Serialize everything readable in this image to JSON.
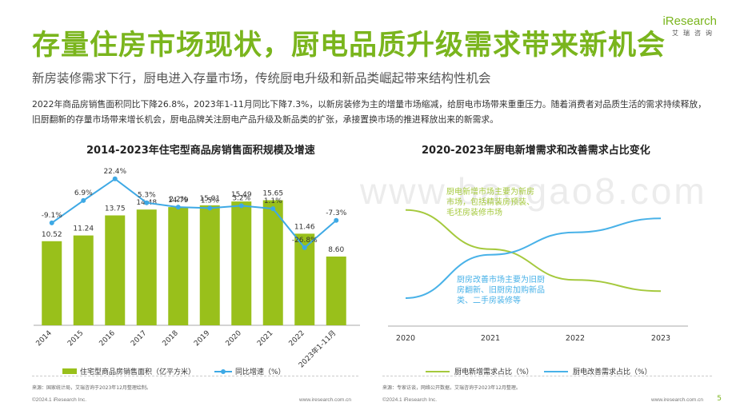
{
  "header": {
    "title": "存量住房市场现状，厨电品质升级需求带来新机会",
    "subtitle": "新房装修需求下行，厨电进入存量市场，传统厨电升级和新品类崛起带来结构性机会",
    "logo_main": "iResearch",
    "logo_sub": "艾瑞咨询"
  },
  "body": {
    "paragraph": "2022年商品房销售面积同比下降26.8%，2023年1-11月同比下降7.3%，以新房装修为主的增量市场缩减，给厨电市场带来重重压力。随着消费者对品质生活的需求持续释放，旧厨翻新的存量市场带来增长机会，厨电品牌关注厨电产品升级及新品类的扩张，承接置换市场的推进释放出来的新需求。"
  },
  "watermark": "www.baogao8.com",
  "chart_data": [
    {
      "type": "bar",
      "title": "2014-2023年住宅型商品房销售面积规模及增速",
      "categories": [
        "2014",
        "2015",
        "2016",
        "2017",
        "2018",
        "2019",
        "2020",
        "2021",
        "2022",
        "2023年1-11月"
      ],
      "series": [
        {
          "name": "住宅型商品房销售面积（亿平方米）",
          "values": [
            10.52,
            11.24,
            13.75,
            14.48,
            14.79,
            15.01,
            15.49,
            15.65,
            11.46,
            8.6
          ],
          "labels": [
            "10.52",
            "11.24",
            "13.75",
            "14.48",
            "14.79",
            "15.01",
            "15.49",
            "15.65",
            "11.46",
            "8.60"
          ],
          "color": "#99c01b"
        },
        {
          "name": "同比增速（%）",
          "type": "line",
          "values": [
            -9.1,
            6.9,
            22.4,
            5.3,
            2.2,
            1.5,
            3.2,
            1.1,
            -26.8,
            -7.3
          ],
          "labels": [
            "-9.1%",
            "6.9%",
            "22.4%",
            "5.3%",
            "2.2%",
            "1.5%",
            "3.2%",
            "1.1%",
            "-26.8%",
            "-7.3%"
          ],
          "color": "#3ea9e5"
        }
      ]
    },
    {
      "type": "line",
      "title": "2020-2023年厨电新增需求和改善需求占比变化",
      "x": [
        "2020",
        "2021",
        "2022",
        "2023"
      ],
      "series": [
        {
          "name": "厨电新增需求占比（%）",
          "color": "#a5c93d",
          "values": [
            0.83,
            0.55,
            0.33,
            0.25
          ]
        },
        {
          "name": "厨电改善需求占比（%）",
          "color": "#49b2e8",
          "values": [
            0.2,
            0.51,
            0.67,
            0.77
          ]
        }
      ],
      "annotations": [
        "厨电新增市场主要为新房市场，包括精装房预装、毛坯房装修市场",
        "厨房改善市场主要为旧厨房翻新、旧厨房加购新品类、二手房装修等"
      ]
    }
  ],
  "footer": {
    "source_left": "来源：国家统计局，艾瑞咨询于2023年12月整理绘制。",
    "source_right": "来源：专家访谈，网络公开数据，艾瑞咨询于2023年12月整理。",
    "copyright_left": "©2024.1 iResearch Inc.",
    "url_left": "www.iresearch.com.cn",
    "copyright_right": "©2024.1 iResearch Inc.",
    "url_right": "www.iresearch.com.cn",
    "page": "5"
  }
}
